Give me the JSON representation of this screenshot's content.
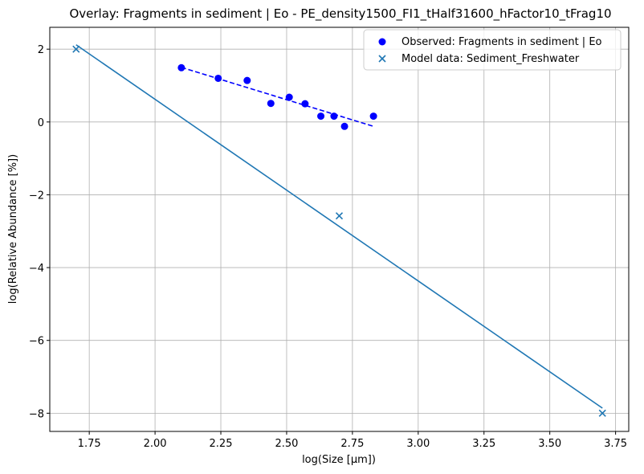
{
  "chart_data": {
    "type": "scatter",
    "title": "Overlay: Fragments in sediment | Eo - PE_density1500_FI1_tHalf31600_hFactor10_tFrag10",
    "xlabel": "log(Size [µm])",
    "ylabel": "log(Relative Abundance [%])",
    "xlim": [
      1.6,
      3.8
    ],
    "ylim": [
      -8.5,
      2.6
    ],
    "xticks": [
      1.75,
      2.0,
      2.25,
      2.5,
      2.75,
      3.0,
      3.25,
      3.5,
      3.75
    ],
    "xtick_labels": [
      "1.75",
      "2.00",
      "2.25",
      "2.50",
      "2.75",
      "3.00",
      "3.25",
      "3.50",
      "3.75"
    ],
    "yticks": [
      2,
      0,
      -2,
      -4,
      -6,
      -8
    ],
    "ytick_labels": [
      "2",
      "0",
      "−2",
      "−4",
      "−6",
      "−8"
    ],
    "grid": true,
    "legend_position": "top-right",
    "series": [
      {
        "name": "Observed: Fragments in sediment | Eo",
        "kind": "scatter-circle",
        "color": "#0000ff",
        "points": [
          [
            2.1,
            1.49
          ],
          [
            2.24,
            1.2
          ],
          [
            2.35,
            1.14
          ],
          [
            2.44,
            0.51
          ],
          [
            2.51,
            0.68
          ],
          [
            2.57,
            0.5
          ],
          [
            2.63,
            0.16
          ],
          [
            2.68,
            0.16
          ],
          [
            2.72,
            -0.12
          ],
          [
            2.83,
            0.16
          ]
        ]
      },
      {
        "name": "Model data: Sediment_Freshwater",
        "kind": "scatter-x",
        "color": "#1f77b4",
        "points": [
          [
            1.7,
            2.0
          ],
          [
            2.7,
            -2.58
          ],
          [
            3.7,
            -8.0
          ]
        ]
      }
    ],
    "fit_lines": [
      {
        "color": "#0000ff",
        "style": "dashed",
        "points": [
          [
            2.1,
            1.5
          ],
          [
            2.83,
            -0.12
          ]
        ]
      },
      {
        "color": "#1f77b4",
        "style": "solid",
        "points": [
          [
            1.7,
            2.12
          ],
          [
            3.7,
            -7.86
          ]
        ]
      }
    ]
  }
}
